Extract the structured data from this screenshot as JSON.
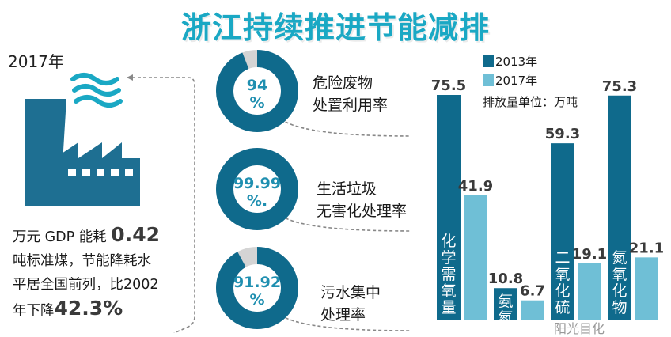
{
  "title": "浙江持续推进节能减排",
  "left_panel": {
    "year": "2017年",
    "gdp_line1_pre": "万元 GDP 能耗",
    "gdp_value": "0.42",
    "gdp_line2": "吨标准煤，节能降耗水",
    "gdp_line3": "平居全国前列，比2002",
    "gdp_line4_pre": "年下降",
    "gdp_decline": "42.3%"
  },
  "rates": [
    {
      "percent": 94,
      "display": "94\n%",
      "line1": "危险废物",
      "line2": "处置利用率"
    },
    {
      "percent": 99.99,
      "display": "99.99\n%.",
      "line1": "生活垃圾",
      "line2": "无害化处理率"
    },
    {
      "percent": 91.92,
      "display": "91.92\n%",
      "line1": "污水集中",
      "line2": "处理率"
    }
  ],
  "colors": {
    "title": "#1aa8c4",
    "dark": "#0f6a8c",
    "light": "#6fbfd6",
    "ring_bg": "#d4d4d4"
  },
  "chart_data": {
    "type": "bar",
    "categories": [
      "化学需氧量",
      "氨氮",
      "二氧化硫",
      "氮氧化物"
    ],
    "series": [
      {
        "name": "2013年",
        "values": [
          75.5,
          10.8,
          59.3,
          75.3
        ]
      },
      {
        "name": "2017年",
        "values": [
          41.9,
          6.7,
          19.1,
          21.1
        ]
      }
    ],
    "value_labels": [
      [
        "75.5",
        "10.8",
        "59.3",
        "75.3"
      ],
      [
        "41.9",
        "6.7",
        "19.1",
        "21.1"
      ]
    ],
    "unit_note": "排放量单位：万吨",
    "ylim": [
      0,
      75.5
    ],
    "legend_position": "top"
  },
  "watermark": "阳光目化"
}
